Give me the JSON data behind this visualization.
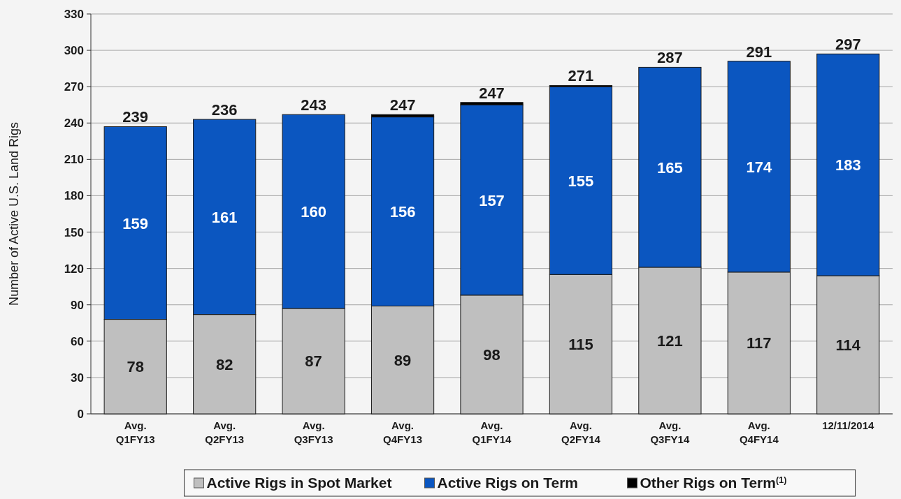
{
  "chart_data": {
    "type": "bar",
    "stacked": true,
    "ylabel": "Number of Active U.S. Land Rigs",
    "categories": [
      "Avg. Q1FY13",
      "Avg. Q2FY13",
      "Avg. Q3FY13",
      "Avg. Q4FY13",
      "Avg. Q1FY14",
      "Avg. Q2FY14",
      "Avg. Q3FY14",
      "Avg. Q4FY14",
      "12/11/2014"
    ],
    "series": [
      {
        "name": "Active Rigs in Spot Market",
        "color": "#bfbfbf",
        "values": [
          78,
          82,
          87,
          89,
          98,
          115,
          121,
          117,
          114
        ],
        "value_labels": [
          "78",
          "82",
          "87",
          "89",
          "98",
          "115",
          "121",
          "117",
          "114"
        ]
      },
      {
        "name": "Active Rigs on Term",
        "color": "#0b56c0",
        "values": [
          159,
          161,
          160,
          156,
          157,
          155,
          165,
          174,
          183
        ],
        "value_labels": [
          "159",
          "161",
          "160",
          "156",
          "157",
          "155",
          "165",
          "174",
          "183"
        ]
      },
      {
        "name": "Other Rigs on Term$^{(1)}$",
        "color": "#000000",
        "values": [
          null,
          null,
          null,
          2,
          2,
          1,
          null,
          null,
          null
        ]
      }
    ],
    "annotations": [
      {
        "text": "239",
        "x": "Avg. Q1FY13",
        "y": 237
      },
      {
        "text": "236",
        "x": "Avg. Q2FY13",
        "y": 243
      },
      {
        "text": "243",
        "x": "Avg. Q3FY13",
        "y": 247
      },
      {
        "text": "247",
        "x": "Avg. Q4FY13",
        "y": 247
      },
      {
        "text": "247",
        "x": "Avg. Q1FY14",
        "y": 257
      },
      {
        "text": "271",
        "x": "Avg. Q2FY14",
        "y": 271
      },
      {
        "text": "287",
        "x": "Avg. Q3FY14",
        "y": 286
      },
      {
        "text": "291",
        "x": "Avg. Q4FY14",
        "y": 291
      },
      {
        "text": "297",
        "x": "12/11/2014",
        "y": 297
      }
    ],
    "ylim": [
      0,
      330
    ],
    "yticks": [
      0,
      30,
      60,
      90,
      120,
      150,
      180,
      210,
      240,
      270,
      300,
      330
    ],
    "grid": "y",
    "legend": "bottom"
  }
}
